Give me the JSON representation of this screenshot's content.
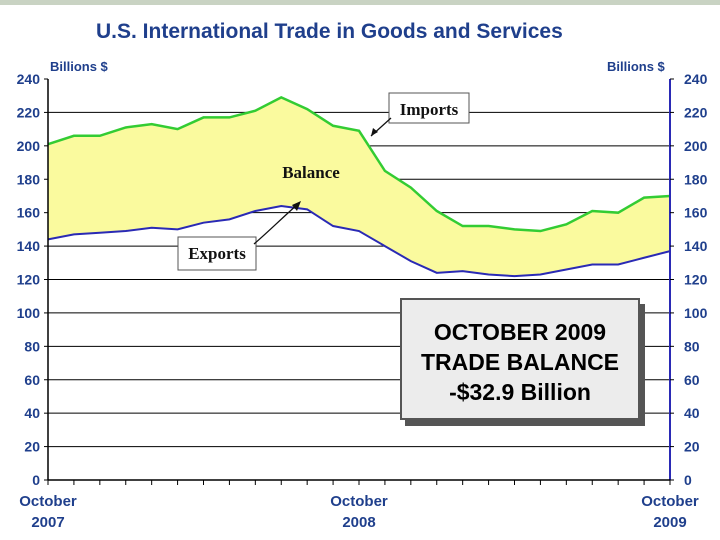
{
  "title": "U.S. International Trade in Goods and Services",
  "y_unit_left": "Billions $",
  "y_unit_right": "Billions $",
  "callout": {
    "line1": "OCTOBER 2009",
    "line2": "TRADE BALANCE",
    "line3": "-$32.9 Billion"
  },
  "colors": {
    "imports_line": "#33cc33",
    "exports_line": "#2a2ab5",
    "balance_fill": "#fafa9e",
    "axis_text": "#1f3f8c"
  },
  "chart_data": {
    "type": "area",
    "title": "U.S. International Trade in Goods and Services",
    "ylabel": "Billions $",
    "ylim": [
      0,
      240
    ],
    "yticks": [
      "0",
      "20",
      "40",
      "60",
      "80",
      "100",
      "120",
      "140",
      "160",
      "180",
      "200",
      "220",
      "240"
    ],
    "grid": "horizontal",
    "x_labels": [
      {
        "index": 0,
        "line1": "October",
        "line2": "2007"
      },
      {
        "index": 12,
        "line1": "October",
        "line2": "2008"
      },
      {
        "index": 24,
        "line1": "October",
        "line2": "2009"
      }
    ],
    "series": [
      {
        "name": "Imports",
        "values": [
          201,
          206,
          206,
          211,
          213,
          210,
          217,
          217,
          221,
          229,
          222,
          212,
          209,
          185,
          175,
          161,
          152,
          152,
          150,
          149,
          153,
          161,
          160,
          169,
          170
        ]
      },
      {
        "name": "Exports",
        "values": [
          144,
          147,
          148,
          149,
          151,
          150,
          154,
          156,
          161,
          164,
          162,
          152,
          149,
          140,
          131,
          124,
          125,
          123,
          122,
          123,
          126,
          129,
          129,
          133,
          137
        ]
      }
    ],
    "annotations": [
      {
        "text": "Imports"
      },
      {
        "text": "Balance"
      },
      {
        "text": "Exports"
      }
    ]
  }
}
